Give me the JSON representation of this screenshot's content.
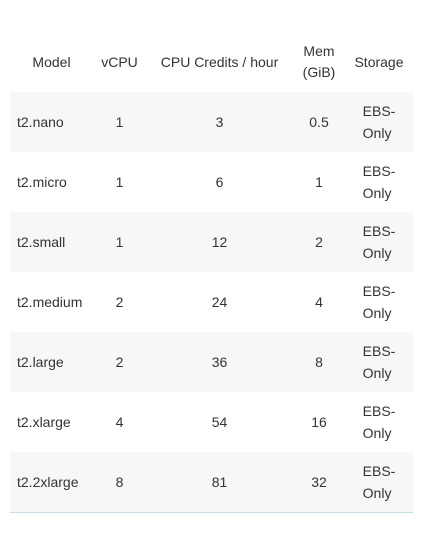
{
  "table": {
    "headers": {
      "model": "Model",
      "vcpu": "vCPU",
      "credits": "CPU Credits / hour",
      "mem_line1": "Mem",
      "mem_line2": "(GiB)",
      "storage": "Storage"
    },
    "rows": [
      {
        "model": "t2.nano",
        "vcpu": "1",
        "credits": "3",
        "mem": "0.5",
        "storage_line1": "EBS-",
        "storage_line2": "Only"
      },
      {
        "model": "t2.micro",
        "vcpu": "1",
        "credits": "6",
        "mem": "1",
        "storage_line1": "EBS-",
        "storage_line2": "Only"
      },
      {
        "model": "t2.small",
        "vcpu": "1",
        "credits": "12",
        "mem": "2",
        "storage_line1": "EBS-",
        "storage_line2": "Only"
      },
      {
        "model": "t2.medium",
        "vcpu": "2",
        "credits": "24",
        "mem": "4",
        "storage_line1": "EBS-",
        "storage_line2": "Only"
      },
      {
        "model": "t2.large",
        "vcpu": "2",
        "credits": "36",
        "mem": "8",
        "storage_line1": "EBS-",
        "storage_line2": "Only"
      },
      {
        "model": "t2.xlarge",
        "vcpu": "4",
        "credits": "54",
        "mem": "16",
        "storage_line1": "EBS-",
        "storage_line2": "Only"
      },
      {
        "model": "t2.2xlarge",
        "vcpu": "8",
        "credits": "81",
        "mem": "32",
        "storage_line1": "EBS-",
        "storage_line2": "Only"
      }
    ]
  },
  "colors": {
    "stripe": "#f7f7f7",
    "text": "#333333",
    "bottom_border": "#c9dbe6"
  }
}
